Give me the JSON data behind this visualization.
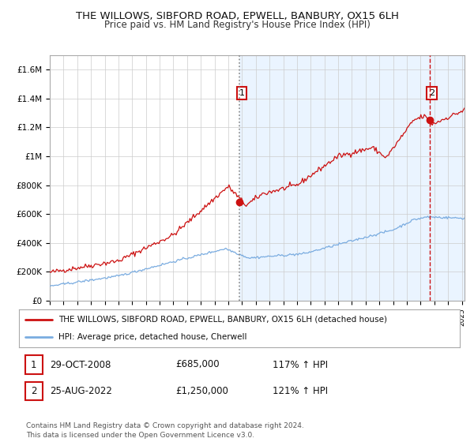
{
  "title": "THE WILLOWS, SIBFORD ROAD, EPWELL, BANBURY, OX15 6LH",
  "subtitle": "Price paid vs. HM Land Registry's House Price Index (HPI)",
  "xlim": [
    1995.0,
    2025.2
  ],
  "ylim": [
    0,
    1700000
  ],
  "yticks": [
    0,
    200000,
    400000,
    600000,
    800000,
    1000000,
    1200000,
    1400000,
    1600000
  ],
  "ytick_labels": [
    "£0",
    "£200K",
    "£400K",
    "£600K",
    "£800K",
    "£1M",
    "£1.2M",
    "£1.4M",
    "£1.6M"
  ],
  "sale1_x": 2008.83,
  "sale1_y": 685000,
  "sale1_label": "1",
  "sale2_x": 2022.65,
  "sale2_y": 1250000,
  "sale2_label": "2",
  "red_color": "#cc1111",
  "blue_color": "#7aace0",
  "shade_color": "#ddeeff",
  "legend_line1": "THE WILLOWS, SIBFORD ROAD, EPWELL, BANBURY, OX15 6LH (detached house)",
  "legend_line2": "HPI: Average price, detached house, Cherwell",
  "table_row1": [
    "1",
    "29-OCT-2008",
    "£685,000",
    "117% ↑ HPI"
  ],
  "table_row2": [
    "2",
    "25-AUG-2022",
    "£1,250,000",
    "121% ↑ HPI"
  ],
  "footnote": "Contains HM Land Registry data © Crown copyright and database right 2024.\nThis data is licensed under the Open Government Licence v3.0.",
  "background_color": "#ffffff",
  "grid_color": "#cccccc"
}
